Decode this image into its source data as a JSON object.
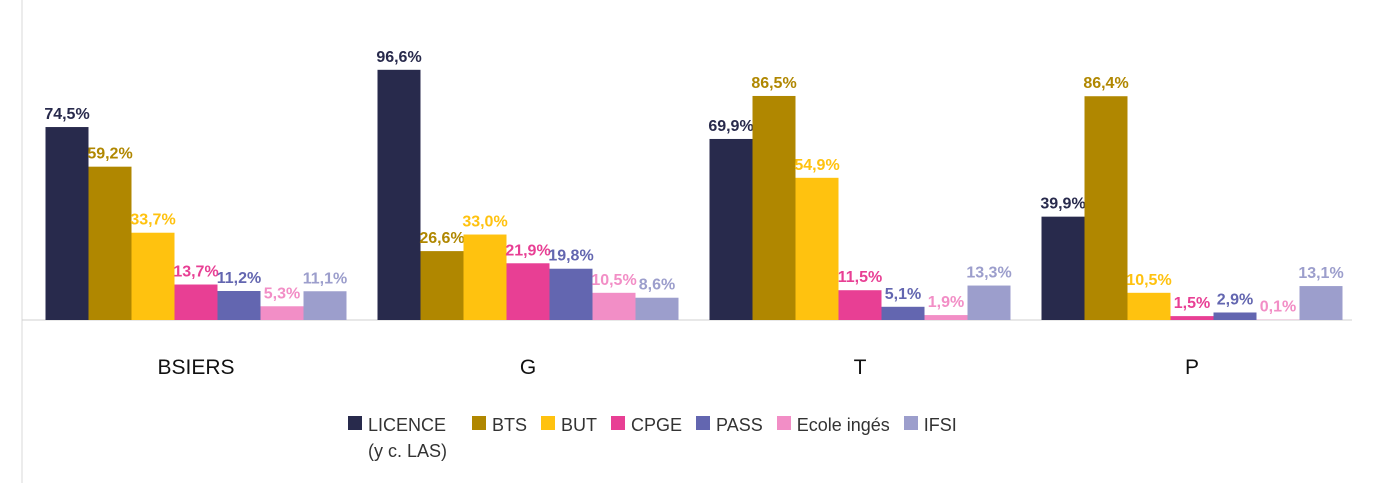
{
  "chart_data": {
    "type": "bar",
    "categories": [
      "BSIERS",
      "G",
      "T",
      "P"
    ],
    "ylim": [
      0,
      100
    ],
    "legend": "bottom",
    "series": [
      {
        "name": "LICENCE (y c. LAS)",
        "color": "#282a4c",
        "values": [
          74.5,
          96.6,
          69.9,
          39.9
        ],
        "value_labels": [
          "74,5%",
          "96,6%",
          "69,9%",
          "39,9%"
        ]
      },
      {
        "name": "BTS",
        "color": "#b08700",
        "values": [
          59.2,
          26.6,
          86.5,
          86.4
        ],
        "value_labels": [
          "59,2%",
          "26,6%",
          "86,5%",
          "86,4%"
        ]
      },
      {
        "name": "BUT",
        "color": "#ffc20f",
        "values": [
          33.7,
          33.0,
          54.9,
          10.5
        ],
        "value_labels": [
          "33,7%",
          "33,0%",
          "54,9%",
          "10,5%"
        ]
      },
      {
        "name": "CPGE",
        "color": "#e83f94",
        "values": [
          13.7,
          21.9,
          11.5,
          1.5
        ],
        "value_labels": [
          "13,7%",
          "21,9%",
          "11,5%",
          "1,5%"
        ]
      },
      {
        "name": "PASS",
        "color": "#6366b0",
        "values": [
          11.2,
          19.8,
          5.1,
          2.9
        ],
        "value_labels": [
          "11,2%",
          "19,8%",
          "5,1%",
          "2,9%"
        ]
      },
      {
        "name": "Ecole ingés",
        "color": "#f28ec6",
        "values": [
          5.3,
          10.5,
          1.9,
          0.1
        ],
        "value_labels": [
          "5,3%",
          "10,5%",
          "1,9%",
          "0,1%"
        ]
      },
      {
        "name": "IFSI",
        "color": "#9c9ecc",
        "values": [
          11.1,
          8.6,
          13.3,
          13.1
        ],
        "value_labels": [
          "11,1%",
          "8,6%",
          "13,3%",
          "13,1%"
        ]
      }
    ]
  }
}
